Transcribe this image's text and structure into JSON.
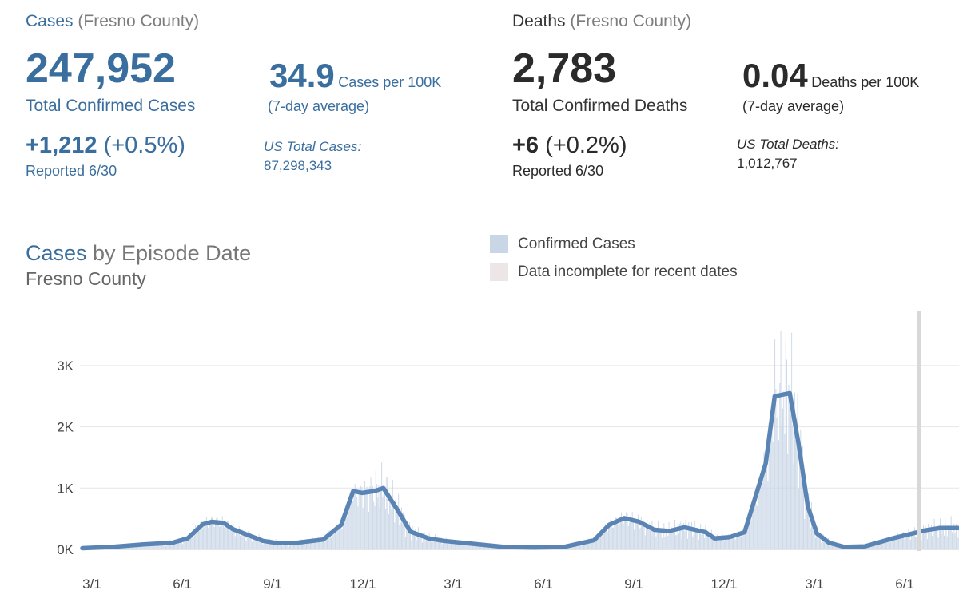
{
  "cases": {
    "header_main": "Cases",
    "header_sub": "(Fresno County)",
    "total": "247,952",
    "total_label": "Total Confirmed Cases",
    "per100k": "34.9",
    "per100k_label": "Cases per 100K",
    "avg_label": "(7-day average)",
    "change_value": "+1,212",
    "change_pct": "(+0.5%)",
    "reported": "Reported 6/30",
    "us_label": "US Total Cases:",
    "us_value": "87,298,343"
  },
  "deaths": {
    "header_main": "Deaths",
    "header_sub": "(Fresno County)",
    "total": "2,783",
    "total_label": "Total Confirmed Deaths",
    "per100k": "0.04",
    "per100k_label": "Deaths per 100K",
    "avg_label": "(7-day average)",
    "change_value": "+6",
    "change_pct": "(+0.2%)",
    "reported": "Reported 6/30",
    "us_label": "US Total Deaths:",
    "us_value": "1,012,767"
  },
  "chart": {
    "title_main": "Cases",
    "title_rest": " by Episode Date",
    "subtitle": "Fresno County",
    "legend": [
      {
        "label": "Confirmed Cases",
        "color": "#c9d6e6"
      },
      {
        "label": "Data incomplete for recent dates",
        "color": "#ece6e6"
      }
    ]
  },
  "colors": {
    "accent_blue": "#3a6e9e",
    "line_blue": "#5a84b4",
    "bar_blue": "#c9d6e6"
  },
  "chart_data": {
    "type": "line",
    "title": "Cases by Episode Date",
    "subtitle": "Fresno County",
    "x_ticks": [
      "3/1",
      "6/1",
      "9/1",
      "12/1",
      "3/1",
      "6/1",
      "9/1",
      "12/1",
      "3/1",
      "6/1"
    ],
    "y_ticks": [
      "0K",
      "1K",
      "2K",
      "3K"
    ],
    "ylim": [
      0,
      3750
    ],
    "grid": "horizontal",
    "legend_position": "top",
    "series": [
      {
        "name": "Confirmed Cases",
        "x_month": [
          0,
          1,
          2,
          3,
          3.5,
          4,
          4.3,
          4.7,
          5,
          6,
          6.5,
          7,
          8,
          8.6,
          9,
          9.3,
          9.7,
          10,
          10.5,
          10.9,
          11.5,
          12,
          13,
          14,
          15,
          16,
          17,
          17.5,
          18,
          18.5,
          19,
          19.5,
          20,
          20.7,
          21,
          21.5,
          22,
          22.7,
          23,
          23.5,
          23.8,
          24.1,
          24.4,
          24.8,
          25.3,
          26,
          27,
          28,
          28.5,
          28.9,
          29.5,
          30
        ],
        "y": [
          20,
          40,
          80,
          110,
          180,
          410,
          450,
          430,
          330,
          140,
          100,
          100,
          160,
          400,
          950,
          920,
          950,
          1000,
          620,
          290,
          180,
          140,
          90,
          40,
          30,
          40,
          150,
          400,
          510,
          450,
          320,
          300,
          360,
          280,
          180,
          200,
          280,
          1400,
          2500,
          2550,
          1700,
          700,
          260,
          110,
          40,
          50,
          190,
          310,
          350,
          350,
          350,
          350
        ]
      }
    ]
  }
}
